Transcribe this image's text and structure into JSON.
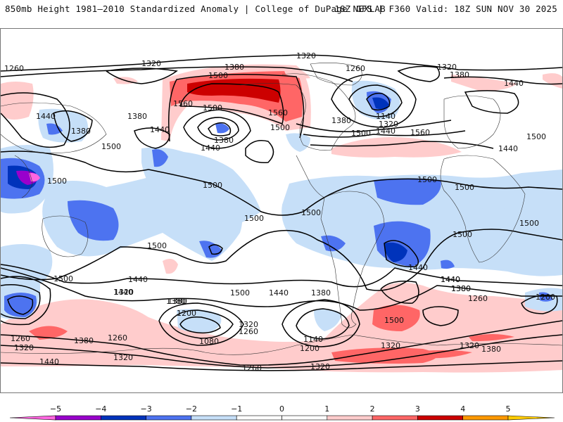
{
  "header": {
    "title_left": "850mb Height 1981–2010 Standardized Anomaly | College of DuPage NEXLAB",
    "title_right": "18Z GFS | F360 Valid: 18Z SUN NOV 30 2025"
  },
  "map": {
    "projection": "global-cylindrical",
    "field": "850mb geopotential height (dam) contours with standardized anomaly shading",
    "contour_interval": 60,
    "contour_labels": [
      {
        "text": "1320",
        "region": "north-pacific-top"
      },
      {
        "text": "1380",
        "region": "north-pacific-top"
      },
      {
        "text": "1320",
        "region": "arctic-top"
      },
      {
        "text": "1260",
        "region": "far-west-arctic"
      },
      {
        "text": "1500",
        "region": "alaska-ridge"
      },
      {
        "text": "1560",
        "region": "alaska-ridge-west"
      },
      {
        "text": "1560",
        "region": "alaska-ridge-east"
      },
      {
        "text": "1500",
        "region": "gulf-of-alaska"
      },
      {
        "text": "1380",
        "region": "gulf-of-alaska-low"
      },
      {
        "text": "1440",
        "region": "gulf-of-alaska-low"
      },
      {
        "text": "1440",
        "region": "east-asia"
      },
      {
        "text": "1380",
        "region": "east-asia"
      },
      {
        "text": "1380",
        "region": "west-pacific"
      },
      {
        "text": "1440",
        "region": "west-pacific"
      },
      {
        "text": "1500",
        "region": "west-pacific"
      },
      {
        "text": "1500",
        "region": "western-us"
      },
      {
        "text": "1260",
        "region": "hudson-bay"
      },
      {
        "text": "1380",
        "region": "central-canada"
      },
      {
        "text": "1140",
        "region": "labrador-low"
      },
      {
        "text": "1320",
        "region": "labrador-low"
      },
      {
        "text": "1440",
        "region": "north-atlantic"
      },
      {
        "text": "1500",
        "region": "north-atlantic"
      },
      {
        "text": "1560",
        "region": "north-atlantic"
      },
      {
        "text": "1320",
        "region": "greenland"
      },
      {
        "text": "1380",
        "region": "norway-sea"
      },
      {
        "text": "1440",
        "region": "scandinavia"
      },
      {
        "text": "1500",
        "region": "central-asia"
      },
      {
        "text": "1440",
        "region": "western-russia"
      },
      {
        "text": "1500",
        "region": "bay-of-bengal"
      },
      {
        "text": "1500",
        "region": "tropical-pacific"
      },
      {
        "text": "1500",
        "region": "tropical-pacific-east"
      },
      {
        "text": "1500",
        "region": "central-america"
      },
      {
        "text": "1500",
        "region": "south-pacific"
      },
      {
        "text": "1500",
        "region": "tropical-atlantic"
      },
      {
        "text": "1500",
        "region": "north-africa"
      },
      {
        "text": "1500",
        "region": "south-atlantic"
      },
      {
        "text": "1500",
        "region": "indian-ocean"
      },
      {
        "text": "1440",
        "region": "brazil-low"
      },
      {
        "text": "1440",
        "region": "south-indian"
      },
      {
        "text": "1380",
        "region": "south-indian"
      },
      {
        "text": "1500",
        "region": "australia"
      },
      {
        "text": "1440",
        "region": "australia-south"
      },
      {
        "text": "1380",
        "region": "australia-south"
      },
      {
        "text": "1440",
        "region": "tasman"
      },
      {
        "text": "1380",
        "region": "south-pacific-mid"
      },
      {
        "text": "1500",
        "region": "south-pacific-mid"
      },
      {
        "text": "1440",
        "region": "south-pacific-mid"
      },
      {
        "text": "1380",
        "region": "south-pacific-mid"
      },
      {
        "text": "1320",
        "region": "new-zealand"
      },
      {
        "text": "1200",
        "region": "ross-sea-low"
      },
      {
        "text": "1080",
        "region": "ross-sea-low"
      },
      {
        "text": "1320",
        "region": "amundsen-sea"
      },
      {
        "text": "1260",
        "region": "amundsen-sea"
      },
      {
        "text": "1140",
        "region": "bellingshausen-low"
      },
      {
        "text": "1200",
        "region": "bellingshausen-low"
      },
      {
        "text": "1260",
        "region": "antarctica"
      },
      {
        "text": "1320",
        "region": "antarctica"
      },
      {
        "text": "1500",
        "region": "south-atlantic-ridge"
      },
      {
        "text": "1320",
        "region": "weddell-sea"
      },
      {
        "text": "1440",
        "region": "south-africa"
      },
      {
        "text": "1380",
        "region": "south-africa"
      },
      {
        "text": "1260",
        "region": "south-africa"
      },
      {
        "text": "1200",
        "region": "kerguelen-low"
      },
      {
        "text": "1320",
        "region": "east-antarctica"
      },
      {
        "text": "1380",
        "region": "east-antarctica"
      },
      {
        "text": "1260",
        "region": "antarctica-west-edge"
      },
      {
        "text": "1320",
        "region": "antarctica-west-edge"
      },
      {
        "text": "1380",
        "region": "antarctica-west-edge"
      },
      {
        "text": "1260",
        "region": "antarctica-west-edge"
      },
      {
        "text": "1320",
        "region": "antarctica-west-edge"
      },
      {
        "text": "1440",
        "region": "antarctica-west-edge"
      }
    ]
  },
  "colorbar": {
    "ticks": [
      "−5",
      "−4",
      "−3",
      "−2",
      "−1",
      "0",
      "1",
      "2",
      "3",
      "4",
      "5"
    ],
    "bins": [
      {
        "range": "< -5",
        "color": "#ff66e0"
      },
      {
        "range": "-5 to -4",
        "color": "#9900cc"
      },
      {
        "range": "-4 to -3",
        "color": "#0033bb"
      },
      {
        "range": "-3 to -2",
        "color": "#4d73f0"
      },
      {
        "range": "-2 to -1",
        "color": "#c6dff8"
      },
      {
        "range": "-1 to 0",
        "color": "#ffffff"
      },
      {
        "range": "0 to 1",
        "color": "#ffffff"
      },
      {
        "range": "1 to 2",
        "color": "#ffcccc"
      },
      {
        "range": "2 to 3",
        "color": "#ff6666"
      },
      {
        "range": "3 to 4",
        "color": "#cc0000"
      },
      {
        "range": "4 to 5",
        "color": "#ff9900"
      },
      {
        "range": "> 5",
        "color": "#ffcc00"
      }
    ]
  },
  "colors": {
    "anom_neg1": "#c6dff8",
    "anom_neg2": "#4d73f0",
    "anom_neg3": "#0033bb",
    "anom_neg4": "#9900cc",
    "anom_neg5": "#ff66e0",
    "anom_pos1": "#ffcccc",
    "anom_pos2": "#ff6666",
    "anom_pos3": "#cc0000",
    "contour": "#000000",
    "coast": "#333333"
  }
}
